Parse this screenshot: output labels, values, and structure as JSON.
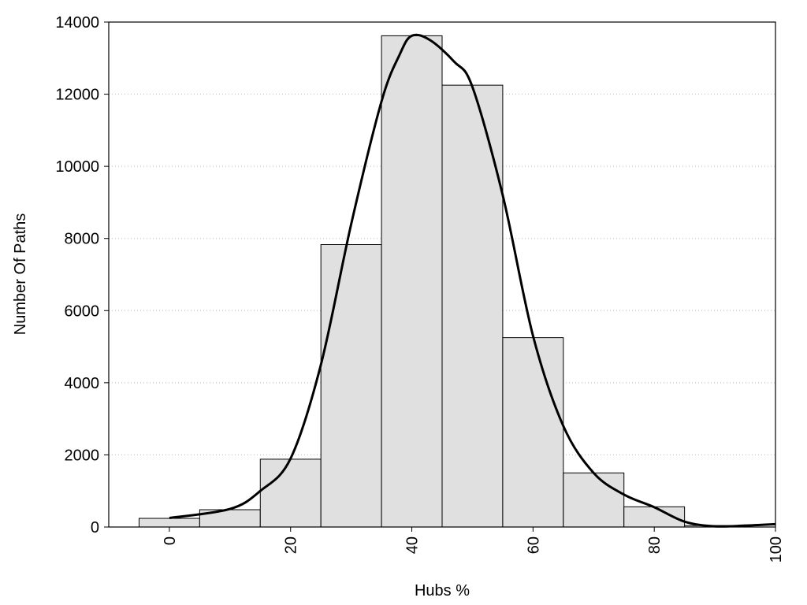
{
  "chart_data": {
    "type": "bar",
    "title": "",
    "xlabel": "Hubs %",
    "ylabel": "Number Of Paths",
    "xlim": [
      -10,
      100
    ],
    "ylim": [
      0,
      14000
    ],
    "xticks": [
      "0",
      "20",
      "40",
      "60",
      "80",
      "100"
    ],
    "yticks": [
      "0",
      "2000",
      "4000",
      "6000",
      "8000",
      "10000",
      "12000",
      "14000"
    ],
    "grid": "horizontal dotted",
    "bin_width": 10,
    "bins": [
      {
        "center": 0,
        "value": 240
      },
      {
        "center": 10,
        "value": 480
      },
      {
        "center": 20,
        "value": 1880
      },
      {
        "center": 30,
        "value": 7830
      },
      {
        "center": 40,
        "value": 13620
      },
      {
        "center": 50,
        "value": 12250
      },
      {
        "center": 60,
        "value": 5250
      },
      {
        "center": 70,
        "value": 1500
      },
      {
        "center": 80,
        "value": 560
      },
      {
        "center": 90,
        "value": 40
      },
      {
        "center": 100,
        "value": 0
      }
    ],
    "curve": {
      "x": [
        0,
        10,
        15,
        20,
        25,
        30,
        35,
        38,
        40,
        43,
        47,
        50,
        55,
        60,
        65,
        70,
        75,
        80,
        85,
        90,
        95,
        100
      ],
      "y": [
        250,
        500,
        1000,
        1900,
        4500,
        8400,
        11800,
        13100,
        13620,
        13500,
        12900,
        12200,
        9200,
        5300,
        2800,
        1500,
        900,
        550,
        150,
        20,
        40,
        80
      ]
    },
    "colors": {
      "bar_fill": "#e0e0e0",
      "bar_stroke": "#000000",
      "curve": "#000000",
      "grid": "#bbbbbb"
    }
  }
}
